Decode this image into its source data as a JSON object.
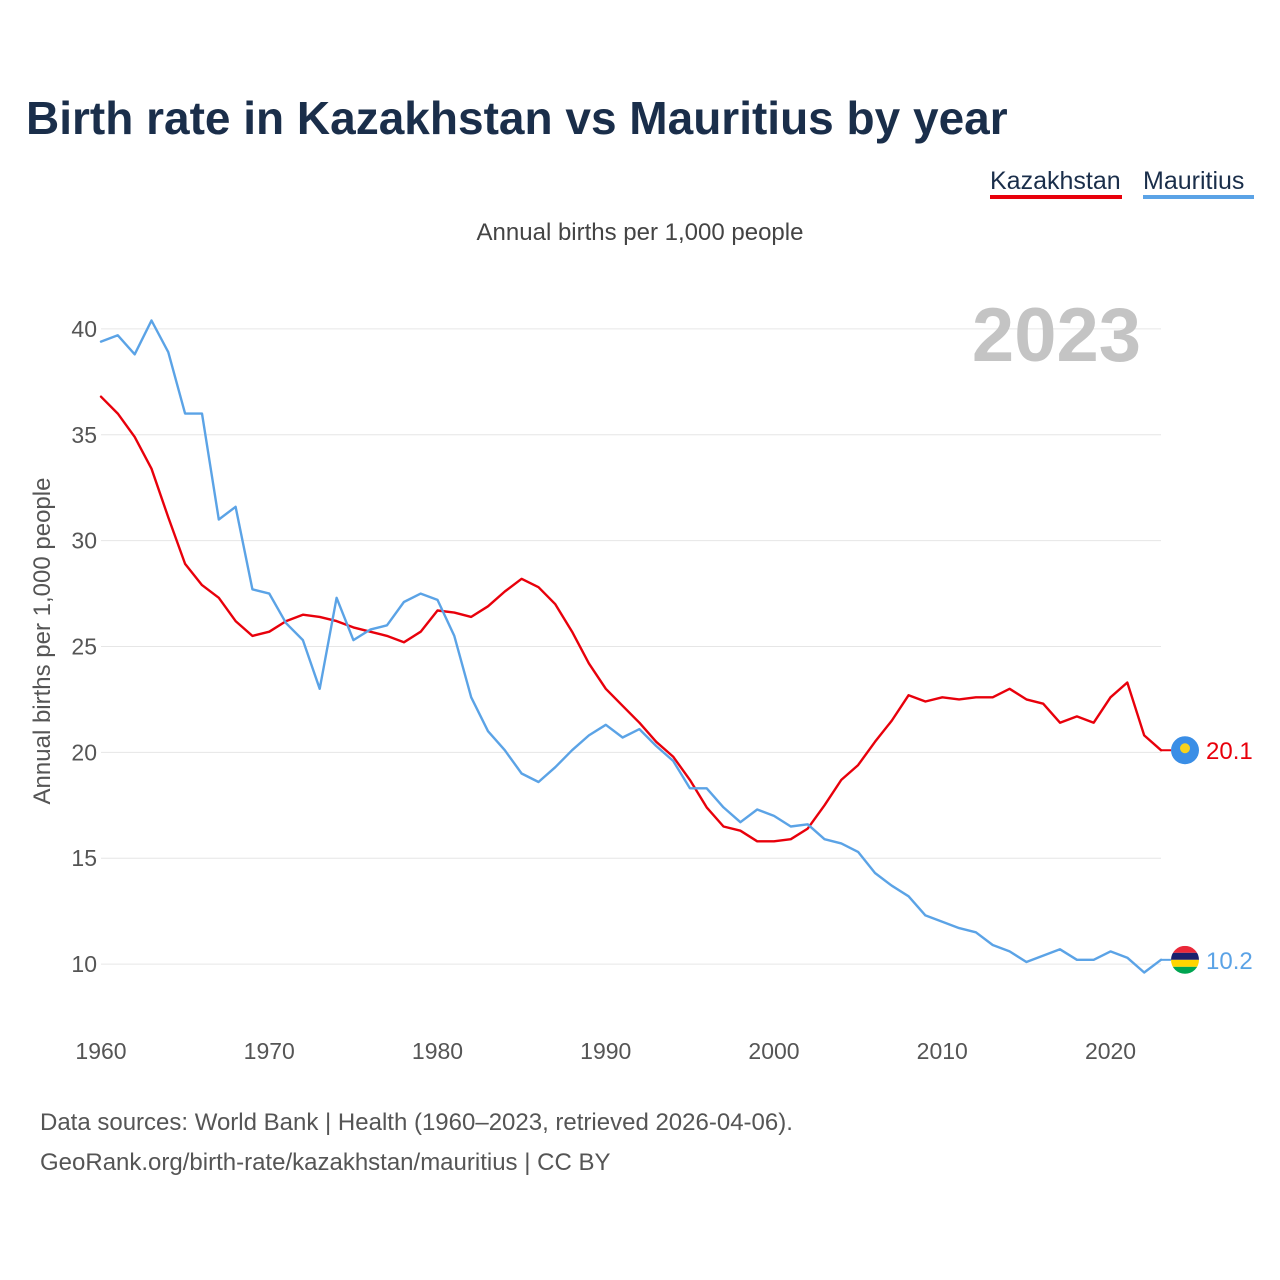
{
  "title": "Birth rate in Kazakhstan vs Mauritius by year",
  "subtitle": "Annual births per 1,000 people",
  "year_watermark": "2023",
  "legend": [
    {
      "name": "Kazakhstan",
      "color": "#e8000b"
    },
    {
      "name": "Mauritius",
      "color": "#5ba3e6"
    }
  ],
  "source_line1": "Data sources: World Bank | Health (1960–2023, retrieved 2026-04-06).",
  "source_line2": "GeoRank.org/birth-rate/kazakhstan/mauritius | CC BY",
  "chart_data": {
    "type": "line",
    "title": "Birth rate in Kazakhstan vs Mauritius by year",
    "ylabel": "Annual births per 1,000 people",
    "xlabel": "",
    "xlim": [
      1960,
      2023
    ],
    "ylim": [
      7.5,
      42.5
    ],
    "xticks": [
      1960,
      1970,
      1980,
      1990,
      2000,
      2010,
      2020
    ],
    "yticks": [
      10,
      15,
      20,
      25,
      30,
      35,
      40
    ],
    "grid": true,
    "legend_position": "top-right",
    "x": [
      1960,
      1961,
      1962,
      1963,
      1964,
      1965,
      1966,
      1967,
      1968,
      1969,
      1970,
      1971,
      1972,
      1973,
      1974,
      1975,
      1976,
      1977,
      1978,
      1979,
      1980,
      1981,
      1982,
      1983,
      1984,
      1985,
      1986,
      1987,
      1988,
      1989,
      1990,
      1991,
      1992,
      1993,
      1994,
      1995,
      1996,
      1997,
      1998,
      1999,
      2000,
      2001,
      2002,
      2003,
      2004,
      2005,
      2006,
      2007,
      2008,
      2009,
      2010,
      2011,
      2012,
      2013,
      2014,
      2015,
      2016,
      2017,
      2018,
      2019,
      2020,
      2021,
      2022,
      2023
    ],
    "series": [
      {
        "name": "Kazakhstan",
        "color": "#e8000b",
        "end_label": "20.1",
        "flag": "kazakhstan-flag",
        "values": [
          36.8,
          36.0,
          34.9,
          33.4,
          31.1,
          28.9,
          27.9,
          27.3,
          26.2,
          25.5,
          25.7,
          26.2,
          26.5,
          26.4,
          26.2,
          25.9,
          25.7,
          25.5,
          25.2,
          25.7,
          26.7,
          26.6,
          26.4,
          26.9,
          27.6,
          28.2,
          27.8,
          27.0,
          25.7,
          24.2,
          23.0,
          22.2,
          21.4,
          20.5,
          19.8,
          18.7,
          17.4,
          16.5,
          16.3,
          15.8,
          15.8,
          15.9,
          16.4,
          17.5,
          18.7,
          19.4,
          20.5,
          21.5,
          22.7,
          22.4,
          22.6,
          22.5,
          22.6,
          22.6,
          23.0,
          22.5,
          22.3,
          21.4,
          21.7,
          21.4,
          22.6,
          23.3,
          20.8,
          20.1
        ]
      },
      {
        "name": "Mauritius",
        "color": "#5ba3e6",
        "end_label": "10.2",
        "flag": "mauritius-flag",
        "values": [
          39.4,
          39.7,
          38.8,
          40.4,
          38.9,
          36.0,
          36.0,
          31.0,
          31.6,
          27.7,
          27.5,
          26.1,
          25.3,
          23.0,
          27.3,
          25.3,
          25.8,
          26.0,
          27.1,
          27.5,
          27.2,
          25.5,
          22.6,
          21.0,
          20.1,
          19.0,
          18.6,
          19.3,
          20.1,
          20.8,
          21.3,
          20.7,
          21.1,
          20.3,
          19.6,
          18.3,
          18.3,
          17.4,
          16.7,
          17.3,
          17.0,
          16.5,
          16.6,
          15.9,
          15.7,
          15.3,
          14.3,
          13.7,
          13.2,
          12.3,
          12.0,
          11.7,
          11.5,
          10.9,
          10.6,
          10.1,
          10.4,
          10.7,
          10.2,
          10.2,
          10.6,
          10.3,
          9.6,
          10.2
        ]
      }
    ]
  }
}
